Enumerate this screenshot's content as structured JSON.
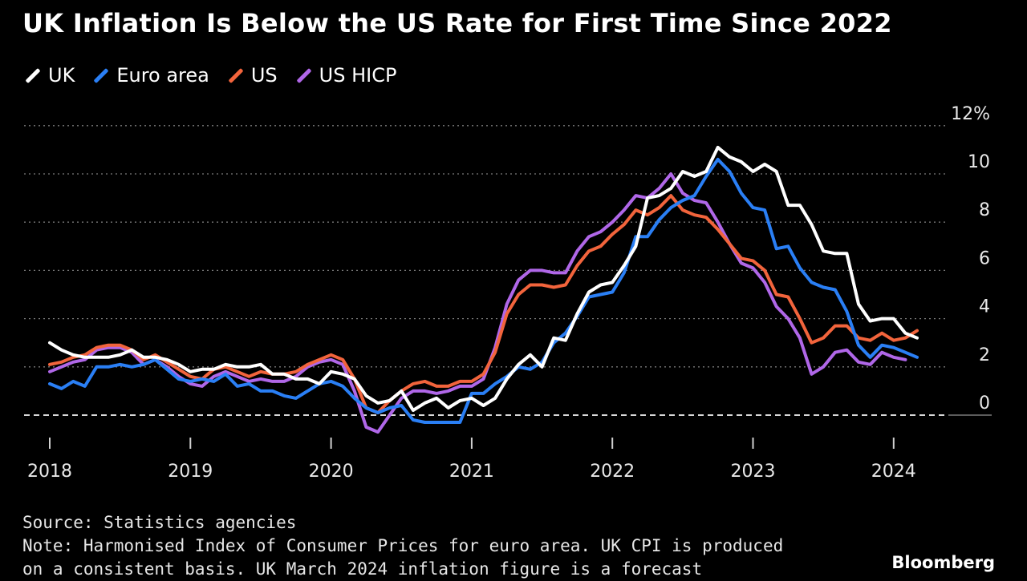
{
  "title": "UK Inflation Is Below the US Rate for First Time Since 2022",
  "colors": {
    "UK": "#ffffff",
    "Euro area": "#2a7ff5",
    "US": "#f2643c",
    "US HICP": "#b067e8",
    "grid": "#7a7a7a",
    "zero": "#d8d8d8"
  },
  "legend": [
    {
      "label": "UK",
      "color": "#ffffff"
    },
    {
      "label": "Euro area",
      "color": "#2a7ff5"
    },
    {
      "label": "US",
      "color": "#f2643c"
    },
    {
      "label": "US HICP",
      "color": "#b067e8"
    }
  ],
  "footer": {
    "source": "Source: Statistics agencies",
    "note_line1": "Note: Harmonised Index of Consumer Prices for euro area. UK CPI is produced",
    "note_line2": "on a consistent basis. UK March 2024 inflation figure is a forecast"
  },
  "brand": "Bloomberg",
  "chart_data": {
    "type": "line",
    "title": "UK Inflation Is Below the US Rate for First Time Since 2022",
    "xlabel": "",
    "ylabel": "",
    "y_unit": "%",
    "ylim": [
      -1,
      12
    ],
    "yticks": [
      0,
      2,
      4,
      6,
      8,
      10,
      12
    ],
    "ytick_labels": [
      "0",
      "2",
      "4",
      "6",
      "8",
      "10",
      "12%"
    ],
    "xlim": [
      2018,
      2024.5
    ],
    "xticks": [
      2018,
      2019,
      2020,
      2021,
      2022,
      2023,
      2024
    ],
    "xtick_labels": [
      "2018",
      "2019",
      "2020",
      "2021",
      "2022",
      "2023",
      "2024"
    ],
    "x_period": "monthly, Jan 2018 – Mar 2024",
    "series": [
      {
        "name": "UK",
        "start": 2018,
        "values": [
          3.0,
          2.7,
          2.5,
          2.4,
          2.4,
          2.4,
          2.5,
          2.7,
          2.4,
          2.4,
          2.3,
          2.1,
          1.8,
          1.9,
          1.9,
          2.1,
          2.0,
          2.0,
          2.1,
          1.7,
          1.7,
          1.5,
          1.5,
          1.3,
          1.8,
          1.7,
          1.5,
          0.8,
          0.5,
          0.6,
          1.0,
          0.2,
          0.5,
          0.7,
          0.3,
          0.6,
          0.7,
          0.4,
          0.7,
          1.5,
          2.1,
          2.5,
          2.0,
          3.2,
          3.1,
          4.2,
          5.1,
          5.4,
          5.5,
          6.2,
          7.0,
          9.0,
          9.1,
          9.4,
          10.1,
          9.9,
          10.1,
          11.1,
          10.7,
          10.5,
          10.1,
          10.4,
          10.1,
          8.7,
          8.7,
          7.9,
          6.8,
          6.7,
          6.7,
          4.6,
          3.9,
          4.0,
          4.0,
          3.4,
          3.2
        ]
      },
      {
        "name": "Euro area",
        "start": 2018,
        "values": [
          1.3,
          1.1,
          1.4,
          1.2,
          2.0,
          2.0,
          2.1,
          2.0,
          2.1,
          2.3,
          1.9,
          1.5,
          1.4,
          1.5,
          1.4,
          1.7,
          1.2,
          1.3,
          1.0,
          1.0,
          0.8,
          0.7,
          1.0,
          1.3,
          1.4,
          1.2,
          0.7,
          0.3,
          0.1,
          0.3,
          0.4,
          -0.2,
          -0.3,
          -0.3,
          -0.3,
          -0.3,
          0.9,
          0.9,
          1.3,
          1.6,
          2.0,
          1.9,
          2.2,
          3.0,
          3.4,
          4.1,
          4.9,
          5.0,
          5.1,
          5.9,
          7.4,
          7.4,
          8.1,
          8.6,
          8.9,
          9.1,
          9.9,
          10.6,
          10.1,
          9.2,
          8.6,
          8.5,
          6.9,
          7.0,
          6.1,
          5.5,
          5.3,
          5.2,
          4.3,
          2.9,
          2.4,
          2.9,
          2.8,
          2.6,
          2.4
        ]
      },
      {
        "name": "US",
        "start": 2018,
        "values": [
          2.1,
          2.2,
          2.4,
          2.5,
          2.8,
          2.9,
          2.9,
          2.7,
          2.3,
          2.5,
          2.2,
          1.9,
          1.6,
          1.5,
          1.9,
          2.0,
          1.8,
          1.6,
          1.8,
          1.7,
          1.7,
          1.8,
          2.1,
          2.3,
          2.5,
          2.3,
          1.5,
          0.3,
          0.1,
          0.6,
          1.0,
          1.3,
          1.4,
          1.2,
          1.2,
          1.4,
          1.4,
          1.7,
          2.6,
          4.2,
          5.0,
          5.4,
          5.4,
          5.3,
          5.4,
          6.2,
          6.8,
          7.0,
          7.5,
          7.9,
          8.5,
          8.3,
          8.6,
          9.1,
          8.5,
          8.3,
          8.2,
          7.7,
          7.1,
          6.5,
          6.4,
          6.0,
          5.0,
          4.9,
          4.0,
          3.0,
          3.2,
          3.7,
          3.7,
          3.2,
          3.1,
          3.4,
          3.1,
          3.2,
          3.5
        ]
      },
      {
        "name": "US HICP",
        "start": 2018,
        "values": [
          1.8,
          2.0,
          2.2,
          2.3,
          2.7,
          2.8,
          2.8,
          2.6,
          2.1,
          2.3,
          2.0,
          1.6,
          1.3,
          1.2,
          1.6,
          1.8,
          1.6,
          1.4,
          1.5,
          1.4,
          1.4,
          1.6,
          2.0,
          2.2,
          2.3,
          2.1,
          1.0,
          -0.5,
          -0.7,
          0.0,
          0.7,
          1.0,
          1.0,
          0.9,
          1.0,
          1.2,
          1.2,
          1.5,
          2.8,
          4.6,
          5.6,
          6.0,
          6.0,
          5.9,
          5.9,
          6.8,
          7.4,
          7.6,
          8.0,
          8.5,
          9.1,
          9.0,
          9.4,
          10.0,
          9.2,
          8.9,
          8.8,
          8.0,
          7.1,
          6.3,
          6.1,
          5.5,
          4.5,
          4.0,
          3.2,
          1.7,
          2.0,
          2.6,
          2.7,
          2.2,
          2.1,
          2.6,
          2.4,
          2.3
        ]
      }
    ],
    "annotations": [
      "Dashed zero line"
    ]
  }
}
